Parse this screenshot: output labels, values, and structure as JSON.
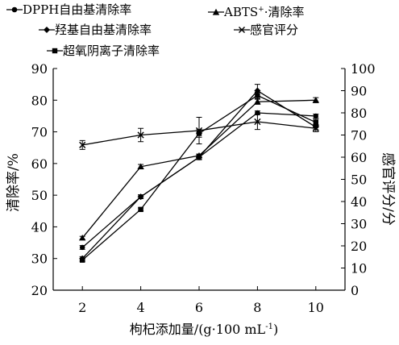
{
  "chart_data": {
    "type": "line",
    "xlabel": "枸杞添加量/(g·100 mL",
    "xlabel_sup": "-1",
    "xlabel_tail": ")",
    "ylabel": "清除率/%",
    "y2label": "感官评分/分",
    "x": [
      2,
      4,
      6,
      8,
      10
    ],
    "ylim": [
      20,
      90
    ],
    "y_ticks": [
      20,
      30,
      40,
      50,
      60,
      70,
      80,
      90
    ],
    "y2lim": [
      0,
      100
    ],
    "y2_ticks": [
      0,
      10,
      20,
      30,
      40,
      50,
      60,
      70,
      80,
      90,
      100
    ],
    "legend_position": "top",
    "series": [
      {
        "name": "DPPH自由基清除率",
        "marker": "circle",
        "axis": "left",
        "values": [
          33.5,
          49.5,
          62.0,
          76.0,
          75.0
        ],
        "errors": [
          0.6,
          0.6,
          0.6,
          0.6,
          0.6
        ]
      },
      {
        "name": "ABTS",
        "name_sup": "+",
        "name_tail": "·清除率",
        "marker": "triangle",
        "axis": "left",
        "values": [
          36.5,
          59.0,
          62.5,
          79.5,
          80.0
        ],
        "errors": [
          0.5,
          0.7,
          0.5,
          0.8,
          0.8
        ]
      },
      {
        "name": "羟基自由基清除率",
        "marker": "diamond",
        "axis": "left",
        "values": [
          30.0,
          49.5,
          62.0,
          83.0,
          71.5
        ],
        "errors": [
          0.6,
          0.6,
          0.8,
          2.0,
          0.8
        ]
      },
      {
        "name": "感官评分",
        "marker": "star",
        "axis": "right",
        "values": [
          65.5,
          70.0,
          72.0,
          76.0,
          73.0
        ],
        "errors": [
          2.0,
          3.0,
          6.0,
          3.5,
          1.5
        ]
      },
      {
        "name": "超氧阴离子清除率",
        "marker": "square",
        "axis": "left",
        "values": [
          29.5,
          45.5,
          69.5,
          81.5,
          73.0
        ],
        "errors": [
          0.5,
          0.5,
          1.2,
          1.0,
          1.0
        ]
      }
    ]
  }
}
